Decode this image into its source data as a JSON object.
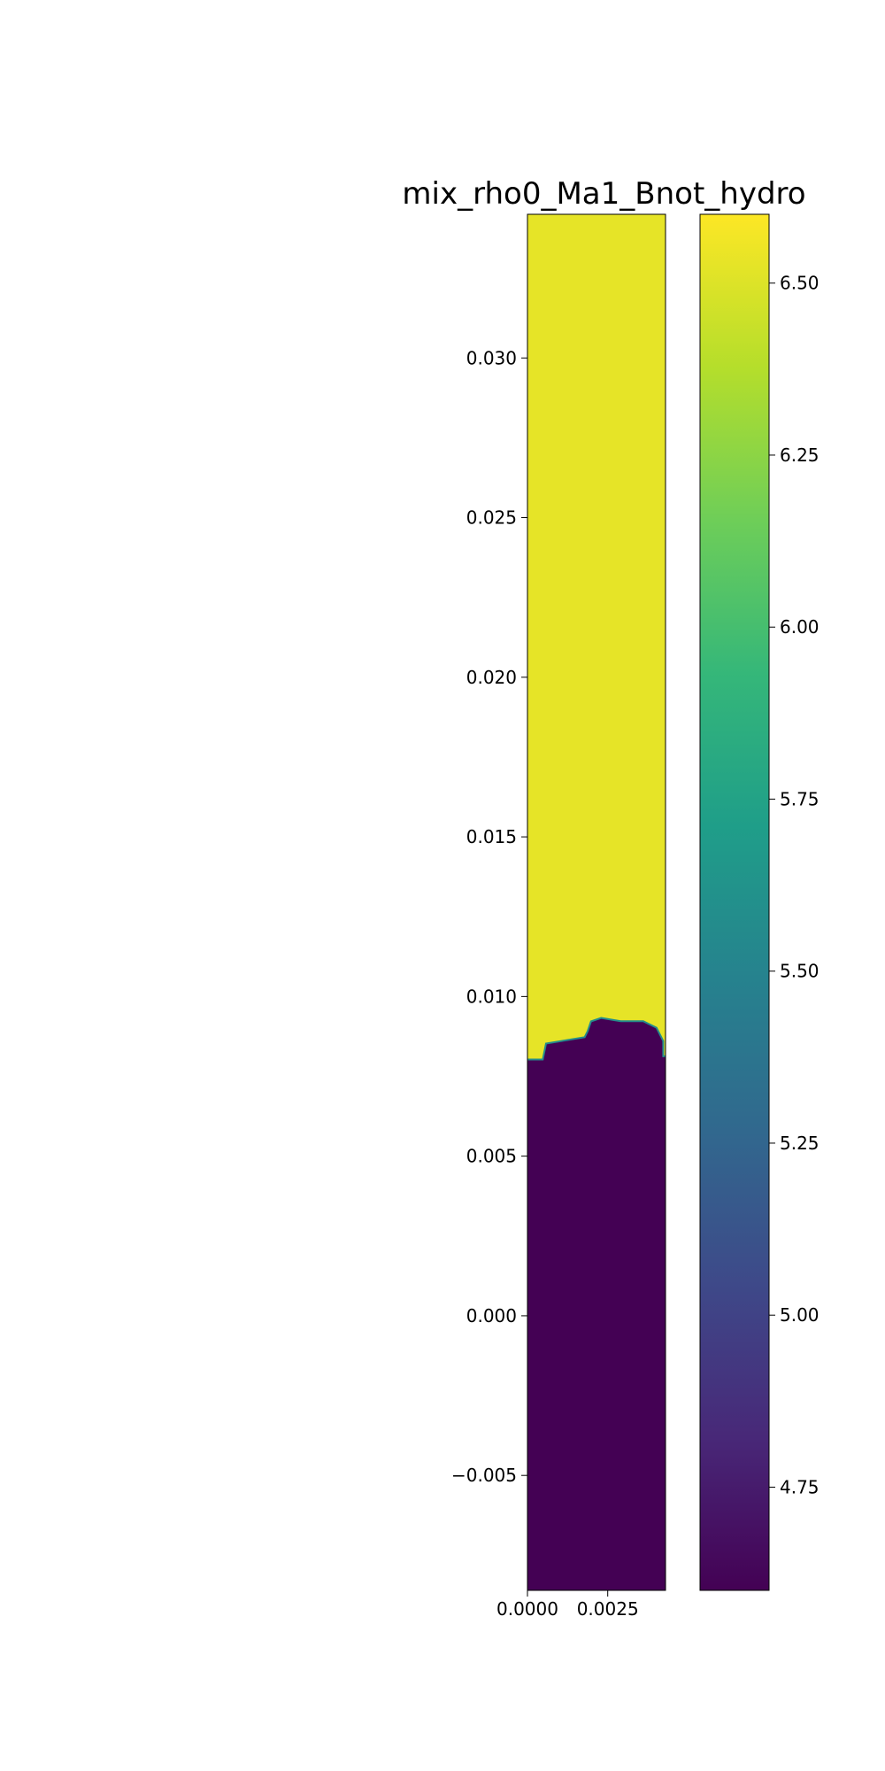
{
  "chart_data": {
    "type": "heatmap",
    "title": "mix_rho0_Ma1_Bnot_hydro",
    "xlabel": "",
    "ylabel": "",
    "xlim": [
      0.0,
      0.0043
    ],
    "ylim": [
      -0.0086,
      0.0345
    ],
    "x_ticks": [
      0.0,
      0.0025
    ],
    "x_tick_labels": [
      "0.0000",
      "0.0025"
    ],
    "y_ticks": [
      -0.005,
      0.0,
      0.005,
      0.01,
      0.015,
      0.02,
      0.025,
      0.03
    ],
    "y_tick_labels": [
      "−0.005",
      "0.000",
      "0.005",
      "0.010",
      "0.015",
      "0.020",
      "0.025",
      "0.030"
    ],
    "colorbar": {
      "colormap": "viridis",
      "vmin": 4.6,
      "vmax": 6.6,
      "ticks": [
        4.75,
        5.0,
        5.25,
        5.5,
        5.75,
        6.0,
        6.25,
        6.5
      ],
      "tick_labels": [
        "4.75",
        "5.00",
        "5.25",
        "5.50",
        "5.75",
        "6.00",
        "6.25",
        "6.50"
      ]
    },
    "regions": {
      "lower_value": 4.6,
      "upper_value": 6.53,
      "interface": [
        [
          0.0,
          0.008
        ],
        [
          0.0005,
          0.008
        ],
        [
          0.0006,
          0.0085
        ],
        [
          0.0018,
          0.0087
        ],
        [
          0.0019,
          0.0089
        ],
        [
          0.002,
          0.0092
        ],
        [
          0.0023,
          0.0093
        ],
        [
          0.0029,
          0.0092
        ],
        [
          0.0036,
          0.0092
        ],
        [
          0.004,
          0.009
        ],
        [
          0.0042,
          0.0086
        ],
        [
          0.0042,
          0.0081
        ],
        [
          0.0043,
          0.0081
        ]
      ]
    },
    "colors": {
      "viridis_stops": [
        "#440154",
        "#482878",
        "#3e4989",
        "#31688e",
        "#26828e",
        "#1f9e89",
        "#35b779",
        "#6ece58",
        "#b5de2b",
        "#fde725"
      ]
    }
  }
}
